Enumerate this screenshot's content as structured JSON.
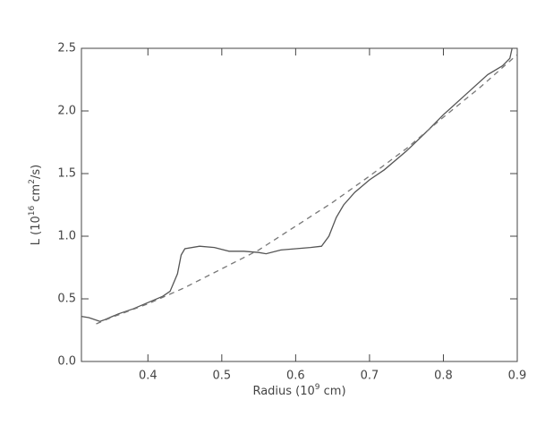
{
  "chart_data": {
    "type": "line",
    "xlabel": [
      "Radius (10",
      "9",
      " cm)"
    ],
    "ylabel": [
      "L (10",
      "16",
      " cm",
      "2",
      "/s)"
    ],
    "xlim": [
      0.31,
      0.9
    ],
    "ylim": [
      0,
      2.5
    ],
    "xticks": [
      0.4,
      0.5,
      0.6,
      0.7,
      0.8,
      0.9
    ],
    "yticks": [
      {
        "value": 0,
        "label": "0.0"
      },
      0.5,
      {
        "value": 1,
        "label": "1.0"
      },
      1.5,
      {
        "value": 2,
        "label": "2.0"
      },
      2.5
    ],
    "series": [
      {
        "color": "#555555",
        "dashed": false,
        "x": [
          0.31,
          0.32,
          0.325,
          0.335,
          0.34,
          0.36,
          0.38,
          0.4,
          0.42,
          0.43,
          0.44,
          0.445,
          0.45,
          0.47,
          0.49,
          0.51,
          0.53,
          0.55,
          0.56,
          0.58,
          0.6,
          0.62,
          0.635,
          0.645,
          0.655,
          0.665,
          0.68,
          0.7,
          0.72,
          0.75,
          0.78,
          0.8,
          0.83,
          0.86,
          0.88,
          0.89,
          0.893
        ],
        "values": [
          0.36,
          0.35,
          0.34,
          0.32,
          0.33,
          0.38,
          0.42,
          0.47,
          0.52,
          0.56,
          0.7,
          0.85,
          0.9,
          0.92,
          0.91,
          0.88,
          0.88,
          0.87,
          0.86,
          0.89,
          0.9,
          0.91,
          0.92,
          1.0,
          1.15,
          1.25,
          1.35,
          1.45,
          1.53,
          1.68,
          1.85,
          1.97,
          2.13,
          2.29,
          2.36,
          2.42,
          2.5
        ]
      },
      {
        "color": "#777777",
        "dashed": true,
        "x": [
          0.33,
          0.35,
          0.4,
          0.45,
          0.5,
          0.55,
          0.6,
          0.65,
          0.7,
          0.75,
          0.8,
          0.85,
          0.9
        ],
        "values": [
          0.3,
          0.35,
          0.46,
          0.59,
          0.74,
          0.89,
          1.08,
          1.27,
          1.48,
          1.7,
          1.95,
          2.19,
          2.45
        ]
      }
    ]
  }
}
